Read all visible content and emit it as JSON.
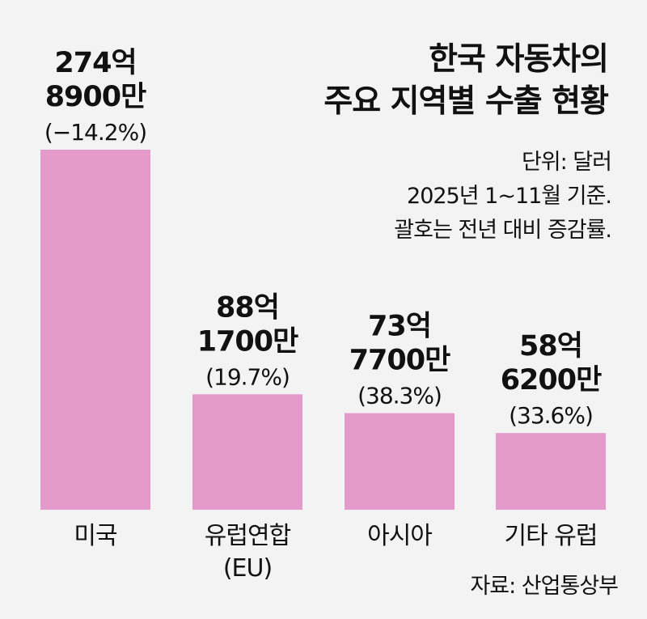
{
  "chart_data": {
    "type": "bar",
    "title": "한국 자동차의 주요 지역별 수출 현황",
    "title_lines": [
      "한국 자동차의",
      "주요 지역별 수출 현황"
    ],
    "notes": [
      "단위: 달러",
      "2025년 1~11월 기준.",
      "괄호는 전년 대비 증감률."
    ],
    "source": "자료: 산업통상부",
    "categories": [
      "미국",
      "유럽연합 (EU)",
      "아시아",
      "기타 유럽"
    ],
    "category_lines": [
      [
        "미국"
      ],
      [
        "유럽연합",
        "(EU)"
      ],
      [
        "아시아"
      ],
      [
        "기타 유럽"
      ]
    ],
    "values": [
      27489,
      8817,
      7377,
      5862
    ],
    "unit": "백만 달러",
    "data_labels": [
      [
        "274억",
        "8900만",
        "(−14.2%)"
      ],
      [
        "88억",
        "1700만",
        "(19.7%)"
      ],
      [
        "73억",
        "7700만",
        "(38.3%)"
      ],
      [
        "58억",
        "6200만",
        "(33.6%)"
      ]
    ],
    "change_pct": [
      -14.2,
      19.7,
      38.3,
      33.6
    ],
    "bar_color": "#e49bcb",
    "grid": false,
    "legend": "none"
  }
}
